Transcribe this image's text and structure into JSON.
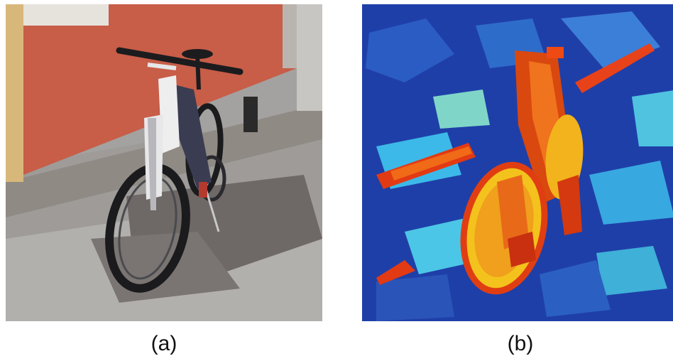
{
  "figure": {
    "panels": [
      {
        "caption": "(a)",
        "content": "bicycle-photo-posterized",
        "colors": {
          "wall": "#c85d48",
          "pavement": "#9d9c9a",
          "shadow": "#6e6866",
          "tire": "#1b1b1d",
          "fork": "#e8e8ea"
        }
      },
      {
        "caption": "(b)",
        "content": "bicycle-saliency-heatmap",
        "colors": {
          "background": "#1f3fa8",
          "mid": "#3cb9e8",
          "warm": "#f4c21d",
          "hot": "#e23a12"
        }
      }
    ]
  }
}
